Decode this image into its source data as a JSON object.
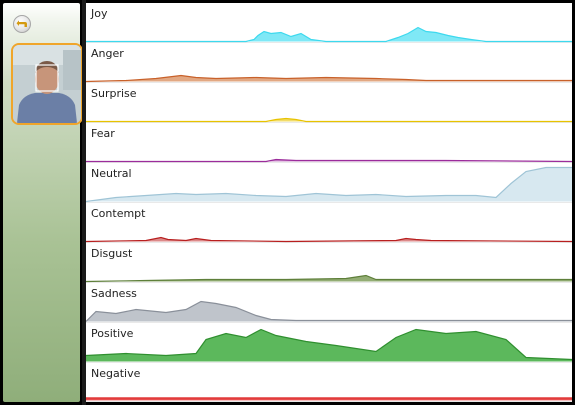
{
  "sidebar": {
    "back_button": {
      "icon": "back-arrow-icon"
    }
  },
  "webcam": {
    "description_icon": "webcam-face-tracking"
  },
  "emotions": [
    {
      "label": "Joy",
      "color": "#3dd9ee",
      "fill": "#7fe8f6"
    },
    {
      "label": "Anger",
      "color": "#c8612a",
      "fill": "#e2a883"
    },
    {
      "label": "Surprise",
      "color": "#e8c300",
      "fill": "#f2dc6a"
    },
    {
      "label": "Fear",
      "color": "#9b2c9b",
      "fill": "#c98bc9"
    },
    {
      "label": "Neutral",
      "color": "#9fc4d6",
      "fill": "#d7e8f0"
    },
    {
      "label": "Contempt",
      "color": "#b81f1f",
      "fill": "#dc8a8a"
    },
    {
      "label": "Disgust",
      "color": "#5e7f3a",
      "fill": "#93ad74"
    },
    {
      "label": "Sadness",
      "color": "#8a909a",
      "fill": "#bfc4cb"
    },
    {
      "label": "Positive",
      "color": "#2f8f2f",
      "fill": "#5cb85c"
    },
    {
      "label": "Negative",
      "color": "#e23b3b",
      "fill": "#f08080"
    }
  ]
}
